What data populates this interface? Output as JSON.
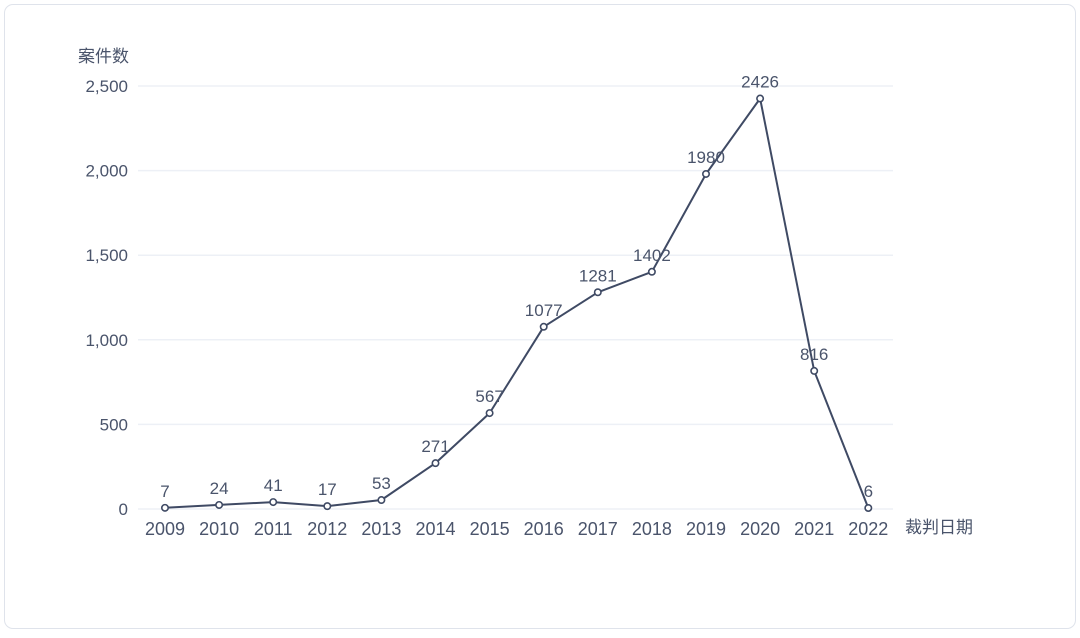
{
  "chart_data": {
    "type": "line",
    "title": "",
    "ylabel": "案件数",
    "xlabel": "裁判日期",
    "x": [
      "2009",
      "2010",
      "2011",
      "2012",
      "2013",
      "2014",
      "2015",
      "2016",
      "2017",
      "2018",
      "2019",
      "2020",
      "2021",
      "2022"
    ],
    "values": [
      7,
      24,
      41,
      17,
      53,
      271,
      567,
      1077,
      1281,
      1402,
      1980,
      2426,
      816,
      6
    ],
    "data_labels": [
      "7",
      "24",
      "41",
      "17",
      "53",
      "271",
      "567",
      "1077",
      "1281",
      "1402",
      "1980",
      "2426",
      "816",
      "6"
    ],
    "yticks": [
      0,
      500,
      1000,
      1500,
      2000,
      2500
    ],
    "ytick_labels": [
      "0",
      "500",
      "1,000",
      "1,500",
      "2,000",
      "2,500"
    ],
    "ylim": [
      0,
      2500
    ],
    "grid": "horizontal",
    "legend": "none",
    "colors": {
      "line": "#3f4a64",
      "marker_fill": "#ffffff",
      "text": "#4a546b",
      "gridline": "#edf0f6",
      "card_border": "#dfe3eb",
      "background": "#ffffff"
    }
  }
}
